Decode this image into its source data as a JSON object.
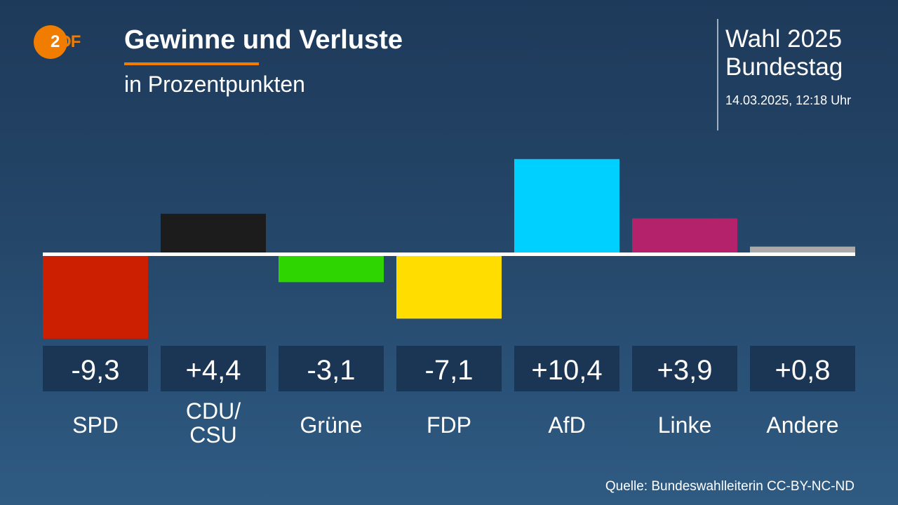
{
  "header": {
    "logo": "ZDF",
    "title": "Gewinne und Verluste",
    "subtitle": "in Prozentpunkten",
    "election_line1": "Wahl 2025",
    "election_line2": "Bundestag",
    "timestamp": "14.03.2025, 12:18 Uhr"
  },
  "footer": {
    "source": "Quelle: Bundeswahlleiterin CC-BY-NC-ND"
  },
  "chart_data": {
    "type": "bar",
    "title": "Gewinne und Verluste",
    "subtitle": "in Prozentpunkten",
    "categories": [
      "SPD",
      "CDU/\nCSU",
      "Grüne",
      "FDP",
      "AfD",
      "Linke",
      "Andere"
    ],
    "values": [
      -9.3,
      4.4,
      -3.1,
      -7.1,
      10.4,
      3.9,
      0.8
    ],
    "value_labels": [
      "-9,3",
      "+4,4",
      "-3,1",
      "-7,1",
      "+10,4",
      "+3,9",
      "+0,8"
    ],
    "colors": [
      "#cc1e00",
      "#1c1c1c",
      "#2ed500",
      "#ffdd00",
      "#00d0ff",
      "#b3226a",
      "#aaaaaa"
    ],
    "grid": false,
    "legend": "none"
  }
}
